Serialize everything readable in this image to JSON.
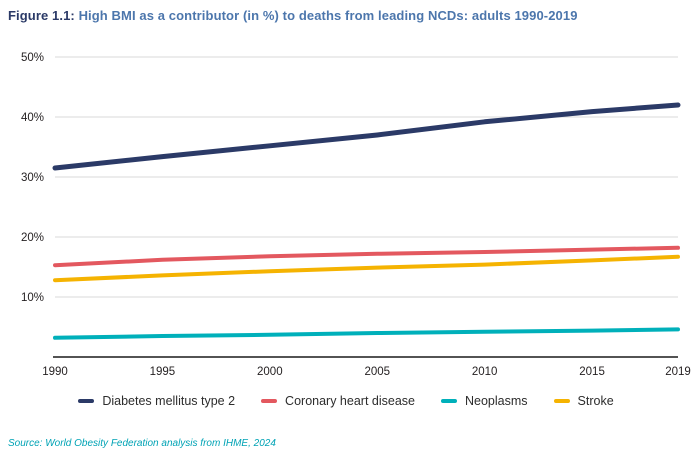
{
  "title": {
    "prefix": "Figure 1.1:",
    "text": "High BMI as a contributor (in %) to deaths from leading NCDs: adults 1990-2019"
  },
  "source": "Source: World Obesity Federation analysis from IHME, 2024",
  "colors": {
    "title_prefix": "#2b3a67",
    "title_text": "#4c76ac",
    "grid": "#d8d8d8",
    "axis": "#1a1a1a",
    "tick_text": "#231f20",
    "legend_text": "#2d2d2d",
    "source_text": "#00a3b5"
  },
  "chart_data": {
    "type": "line",
    "title": "High BMI as a contributor (in %) to deaths from leading NCDs: adults 1990-2019",
    "xlabel": "",
    "ylabel": "",
    "x": [
      1990,
      1995,
      2000,
      2005,
      2010,
      2015,
      2019
    ],
    "x_tick_labels": [
      "1990",
      "1995",
      "2000",
      "2005",
      "2010",
      "2015",
      "2019"
    ],
    "y_ticks": [
      10,
      20,
      30,
      40,
      50
    ],
    "y_tick_labels": [
      "10%",
      "20%",
      "30%",
      "40%",
      "50%"
    ],
    "ylim": [
      0,
      50
    ],
    "grid": "horizontal",
    "legend_position": "bottom",
    "series": [
      {
        "name": "Diabetes mellitus type 2",
        "color": "#2b3a67",
        "stroke_width": 5,
        "values": [
          31.5,
          33.4,
          35.2,
          37.0,
          39.2,
          40.9,
          42.0
        ]
      },
      {
        "name": "Coronary heart disease",
        "color": "#e3585f",
        "stroke_width": 4,
        "values": [
          15.3,
          16.2,
          16.8,
          17.2,
          17.5,
          17.9,
          18.2
        ]
      },
      {
        "name": "Neoplasms",
        "color": "#00b0ba",
        "stroke_width": 4,
        "values": [
          3.2,
          3.5,
          3.7,
          4.0,
          4.2,
          4.4,
          4.6
        ]
      },
      {
        "name": "Stroke",
        "color": "#f5b301",
        "stroke_width": 4,
        "values": [
          12.8,
          13.6,
          14.3,
          14.9,
          15.4,
          16.1,
          16.7
        ]
      }
    ]
  }
}
